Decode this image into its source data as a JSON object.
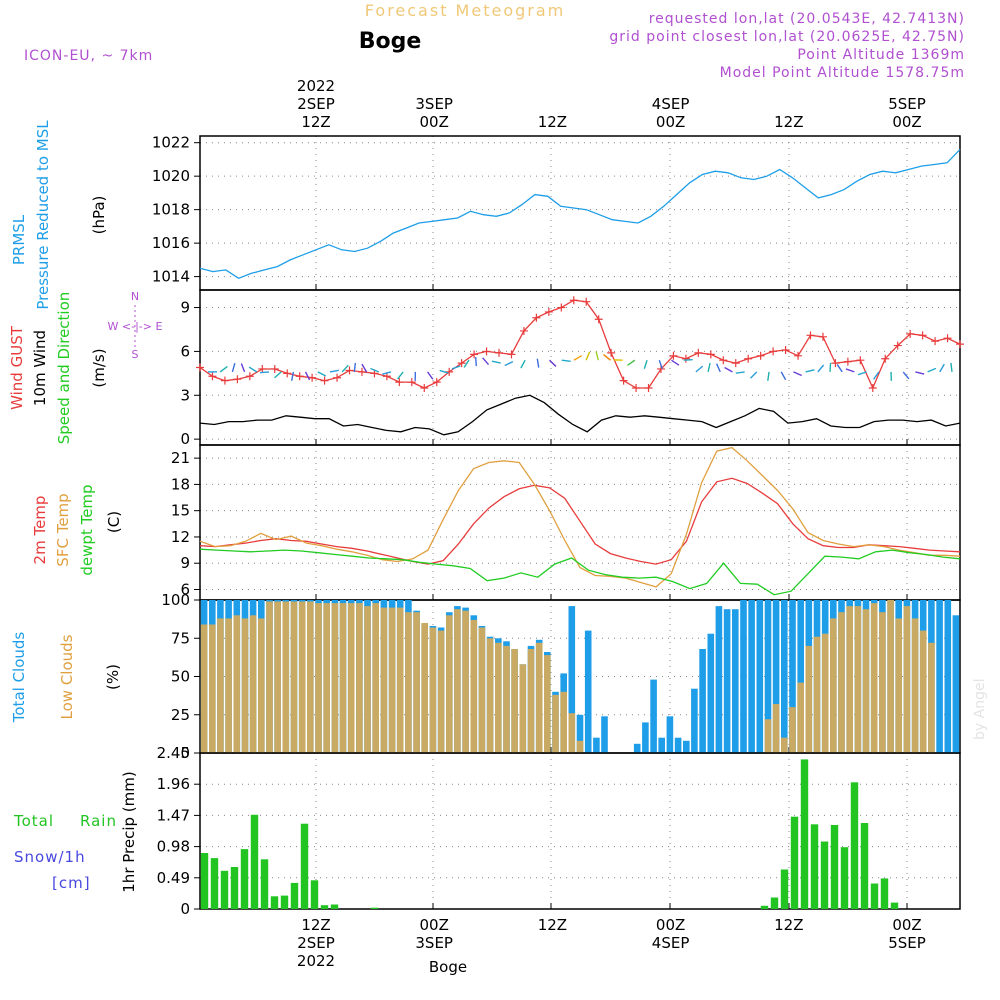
{
  "header": {
    "app_title": "Forecast Meteogram",
    "location": "Boge",
    "model": "ICON-EU, ~ 7km",
    "requested": "requested lon,lat (20.0543E, 42.7413N)",
    "grid_point": "grid point closest lon,lat (20.0625E, 42.75N)",
    "point_alt": "Point Altitude 1369m",
    "model_alt": "Model Point Altitude 1578.75m",
    "footer_location": "Boge",
    "credit": "by Angel"
  },
  "colors": {
    "pressure": "#1e9ee8",
    "gust": "#e83c3c",
    "wind": "#000000",
    "t2m": "#e83c3c",
    "sfc": "#e0a040",
    "dewpt": "#22cc22",
    "total_clouds": "#1e9ee8",
    "low_clouds": "#c8aa64",
    "rain": "#22c422",
    "purple": "#b050d0"
  },
  "time_axis": {
    "top_labels": [
      {
        "i": 8,
        "lines": [
          "2022",
          "2SEP",
          "12Z"
        ]
      },
      {
        "i": 14,
        "lines": [
          "3SEP",
          "00Z"
        ]
      },
      {
        "i": 20,
        "lines": [
          "12Z"
        ]
      },
      {
        "i": 26,
        "lines": [
          "4SEP",
          "00Z"
        ]
      },
      {
        "i": 32,
        "lines": [
          "12Z"
        ]
      },
      {
        "i": 38,
        "lines": [
          "5SEP",
          "00Z"
        ]
      }
    ],
    "bottom_labels": [
      {
        "i": 8,
        "lines": [
          "12Z",
          "2SEP",
          "2022"
        ]
      },
      {
        "i": 14,
        "lines": [
          "00Z",
          "3SEP"
        ]
      },
      {
        "i": 20,
        "lines": [
          "12Z"
        ]
      },
      {
        "i": 26,
        "lines": [
          "00Z",
          "4SEP"
        ]
      },
      {
        "i": 32,
        "lines": [
          "12Z"
        ]
      },
      {
        "i": 38,
        "lines": [
          "00Z",
          "5SEP"
        ]
      }
    ]
  },
  "panel_labels": {
    "pressure": {
      "title1": "PRMSL",
      "title2": "Pressure Reduced to MSL",
      "unit": "(hPa)"
    },
    "wind": {
      "l1": "Wind GUST",
      "l2": "10m Wind",
      "l3": "Speed and Direction",
      "unit": "(m/s)",
      "compass_n": "N",
      "compass_s": "S",
      "compass_we": "W <-|-> E"
    },
    "temp": {
      "l1": "2m Temp",
      "l2": "SFC Temp",
      "l3": "dewpt Temp",
      "unit": "(C)"
    },
    "clouds": {
      "l1": "Total Clouds",
      "l2": "Low Clouds",
      "unit": "(%)"
    },
    "precip": {
      "l1": "Total",
      "l1b": "Rain",
      "l2": "Snow/1h",
      "l3": "[cm]",
      "unit": "1hr Precip (mm)"
    }
  },
  "chart_data": [
    {
      "type": "line",
      "name": "pressure",
      "ylabel": "(hPa)",
      "ylim": [
        1013.2,
        1022.4
      ],
      "yticks": [
        1014,
        1016,
        1018,
        1020,
        1022
      ],
      "series": [
        {
          "name": "PRMSL",
          "values": [
            1014.5,
            1014.3,
            1014.4,
            1013.9,
            1014.2,
            1014.4,
            1014.6,
            1015.0,
            1015.3,
            1015.6,
            1015.9,
            1015.6,
            1015.5,
            1015.7,
            1016.1,
            1016.6,
            1016.9,
            1017.2,
            1017.3,
            1017.4,
            1017.5,
            1017.9,
            1017.7,
            1017.6,
            1017.8,
            1018.3,
            1018.9,
            1018.8,
            1018.2,
            1018.1,
            1018.0,
            1017.7,
            1017.4,
            1017.3,
            1017.2,
            1017.6,
            1018.2,
            1018.9,
            1019.6,
            1020.1,
            1020.3,
            1020.2,
            1019.9,
            1019.8,
            1020.0,
            1020.4,
            1019.9,
            1019.3,
            1018.7,
            1018.9,
            1019.2,
            1019.7,
            1020.1,
            1020.3,
            1020.2,
            1020.4,
            1020.6,
            1020.7,
            1020.8,
            1021.6
          ]
        }
      ]
    },
    {
      "type": "line",
      "name": "wind",
      "ylabel": "(m/s)",
      "ylim": [
        -0.4,
        10.2
      ],
      "yticks": [
        0,
        3,
        6,
        9
      ],
      "series": [
        {
          "name": "Wind GUST",
          "values": [
            4.9,
            4.3,
            4.0,
            4.1,
            4.3,
            4.8,
            4.8,
            4.5,
            4.3,
            4.2,
            4.0,
            4.2,
            4.7,
            4.6,
            4.5,
            4.3,
            3.9,
            3.9,
            3.5,
            3.9,
            4.6,
            5.2,
            5.8,
            6.0,
            5.9,
            5.8,
            7.4,
            8.3,
            8.7,
            9.0,
            9.5,
            9.4,
            8.2,
            5.9,
            4.0,
            3.5,
            3.5,
            4.8,
            5.7,
            5.5,
            5.9,
            5.8,
            5.4,
            5.2,
            5.5,
            5.7,
            6.0,
            6.1,
            5.7,
            7.1,
            7.0,
            5.2,
            5.3,
            5.4,
            3.5,
            5.5,
            6.4,
            7.2,
            7.1,
            6.7,
            6.9,
            6.5
          ]
        },
        {
          "name": "10m Wind",
          "values": [
            1.1,
            1.0,
            1.2,
            1.2,
            1.3,
            1.3,
            1.6,
            1.5,
            1.4,
            1.4,
            0.9,
            1.0,
            0.8,
            0.6,
            0.5,
            0.8,
            0.7,
            0.3,
            0.5,
            1.2,
            2.0,
            2.4,
            2.8,
            3.0,
            2.5,
            1.7,
            1.0,
            0.5,
            1.3,
            1.6,
            1.5,
            1.6,
            1.5,
            1.4,
            1.3,
            1.2,
            0.8,
            1.2,
            1.6,
            2.1,
            1.9,
            1.1,
            1.2,
            1.4,
            0.9,
            0.8,
            0.8,
            1.2,
            1.3,
            1.3,
            1.2,
            1.3,
            0.9,
            1.1
          ]
        }
      ]
    },
    {
      "type": "line",
      "name": "temperature",
      "ylabel": "(C)",
      "ylim": [
        4.8,
        22.5
      ],
      "yticks": [
        6,
        9,
        12,
        15,
        18,
        21
      ],
      "series": [
        {
          "name": "2m Temp",
          "values": [
            11.0,
            10.9,
            11.1,
            11.3,
            11.6,
            11.8,
            11.6,
            11.5,
            11.2,
            10.9,
            10.7,
            10.4,
            10.0,
            9.6,
            9.2,
            8.9,
            9.3,
            11.2,
            13.5,
            15.3,
            16.6,
            17.5,
            17.9,
            17.6,
            16.4,
            13.8,
            11.2,
            10.1,
            9.6,
            9.2,
            8.9,
            9.4,
            11.5,
            16.0,
            18.3,
            18.7,
            18.1,
            17.0,
            15.8,
            13.5,
            11.8,
            11.0,
            10.8,
            10.8,
            11.1,
            11.0,
            10.9,
            10.7,
            10.5,
            10.4,
            10.3
          ]
        },
        {
          "name": "SFC Temp",
          "values": [
            11.5,
            10.9,
            11.0,
            11.5,
            12.4,
            11.7,
            12.1,
            11.3,
            11.0,
            10.6,
            10.3,
            9.9,
            9.4,
            9.2,
            9.5,
            10.5,
            14.0,
            17.3,
            19.8,
            20.5,
            20.7,
            20.5,
            18.0,
            15.0,
            11.6,
            8.5,
            7.6,
            7.5,
            7.3,
            6.8,
            6.3,
            7.8,
            12.3,
            18.2,
            21.8,
            22.2,
            20.7,
            19.0,
            17.3,
            15.2,
            12.5,
            11.6,
            11.2,
            10.9,
            11.1,
            10.9,
            10.5,
            10.2,
            9.9,
            9.9,
            9.8
          ]
        },
        {
          "name": "dewpt Temp",
          "values": [
            10.6,
            10.5,
            10.4,
            10.3,
            10.4,
            10.5,
            10.4,
            10.2,
            10.0,
            9.8,
            9.6,
            9.5,
            9.4,
            9.1,
            8.9,
            8.7,
            8.4,
            7.0,
            7.3,
            7.9,
            7.4,
            8.9,
            9.6,
            8.2,
            7.7,
            7.4,
            7.3,
            7.4,
            6.9,
            6.1,
            6.7,
            9.0,
            6.7,
            6.6,
            5.4,
            5.8,
            7.8,
            9.8,
            9.7,
            9.5,
            10.3,
            10.5,
            10.2,
            10.0,
            9.7,
            9.5
          ]
        }
      ]
    },
    {
      "type": "bar",
      "name": "clouds",
      "ylabel": "(%)",
      "ylim": [
        0,
        100
      ],
      "yticks": [
        0,
        25,
        50,
        75,
        100
      ],
      "series": [
        {
          "name": "Total Clouds",
          "values": [
            100,
            100,
            100,
            100,
            100,
            100,
            100,
            100,
            100,
            100,
            100,
            100,
            100,
            100,
            100,
            100,
            100,
            100,
            100,
            100,
            100,
            100,
            100,
            100,
            100,
            100,
            93,
            84,
            83,
            82,
            92,
            96,
            95,
            90,
            83,
            76,
            75,
            73,
            68,
            58,
            70,
            74,
            66,
            40,
            52,
            96,
            25,
            80,
            10,
            24,
            0,
            0,
            0,
            6,
            20,
            48,
            10,
            24,
            10,
            8,
            42,
            68,
            78,
            96,
            94,
            94,
            100,
            100,
            100,
            100,
            100,
            100,
            100,
            100,
            100,
            100,
            100,
            100,
            100,
            100,
            100,
            100,
            100,
            100,
            100,
            100,
            100,
            100,
            100,
            100,
            100,
            100,
            90
          ]
        },
        {
          "name": "Low Clouds",
          "values": [
            84,
            84,
            88,
            88,
            90,
            88,
            90,
            88,
            99,
            99,
            99,
            99,
            99,
            99,
            98,
            98,
            98,
            98,
            98,
            98,
            96,
            98,
            95,
            95,
            95,
            92,
            92,
            85,
            82,
            80,
            90,
            94,
            93,
            87,
            82,
            75,
            72,
            70,
            68,
            58,
            68,
            72,
            64,
            38,
            40,
            26,
            8,
            0,
            0,
            0,
            0,
            0,
            0,
            0,
            0,
            0,
            0,
            0,
            0,
            0,
            0,
            0,
            0,
            0,
            0,
            0,
            0,
            0,
            0,
            22,
            32,
            10,
            30,
            46,
            70,
            76,
            78,
            88,
            92,
            96,
            96,
            94,
            98,
            92,
            100,
            88,
            96,
            88,
            80,
            72
          ]
        }
      ]
    },
    {
      "type": "bar",
      "name": "precipitation",
      "ylabel": "1hr Precip (mm)",
      "ylim": [
        0,
        2.45
      ],
      "yticks": [
        0,
        0.49,
        0.98,
        1.47,
        1.96,
        2.45
      ],
      "series": [
        {
          "name": "Total Rain",
          "values": [
            0.88,
            0.8,
            0.6,
            0.66,
            0.94,
            1.48,
            0.78,
            0.2,
            0.21,
            0.41,
            1.34,
            0.45,
            0.06,
            0.07,
            0,
            0,
            0,
            0.02,
            0,
            0,
            0,
            0,
            0,
            0,
            0,
            0,
            0,
            0,
            0,
            0,
            0,
            0,
            0,
            0,
            0,
            0,
            0,
            0,
            0,
            0,
            0,
            0,
            0,
            0,
            0,
            0,
            0,
            0,
            0,
            0,
            0,
            0,
            0,
            0,
            0,
            0,
            0.05,
            0.18,
            0.62,
            1.45,
            2.35,
            1.33,
            1.06,
            1.32,
            0.97,
            1.99,
            1.35,
            0.4,
            0.48,
            0.1,
            0,
            0,
            0,
            0,
            0,
            0
          ]
        }
      ]
    }
  ]
}
